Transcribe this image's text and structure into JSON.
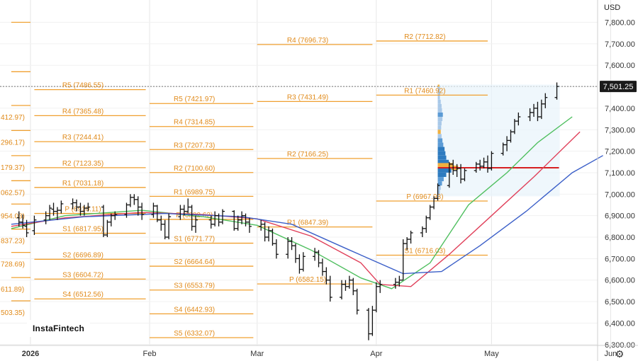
{
  "currency": "USD",
  "last_price": "7,501.25",
  "logo": "InstaFintech",
  "settings_icon": "gear-icon",
  "chart_data": {
    "type": "ohlc-with-pivot-levels",
    "y_axis_ticks": [
      "7,800.00",
      "7,700.00",
      "7,600.00",
      "7,500.00",
      "7,400.00",
      "7,300.00",
      "7,200.00",
      "7,100.00",
      "7,000.00",
      "6,900.00",
      "6,800.00",
      "6,700.00",
      "6,600.00",
      "6,500.00",
      "6,400.00",
      "6,300.00"
    ],
    "y_range": [
      6280,
      7840
    ],
    "x_axis_labels": [
      "2026",
      "Feb",
      "Mar",
      "Apr",
      "May",
      "Jun"
    ],
    "x_range": [
      "2025-12-27",
      "2026-06-01"
    ],
    "last_price": 7501.25,
    "colors": {
      "pivot": "#f0a030",
      "pivot_text": "#e08a1a",
      "bars": "#111111",
      "sma_fast": "#4fbf5f",
      "sma_mid": "#e0405a",
      "sma_slow": "#3b5fc8",
      "poc": "#d62020",
      "profile_box": "#e8f3fb",
      "grid": "#e6e6e6"
    },
    "pivot_periods": [
      {
        "start": "2025-12-27",
        "end": "2026-01-01",
        "levels": [
          {
            "label": "",
            "value": 7800
          },
          {
            "label": "",
            "value": 7570
          },
          {
            "label": "412.97)",
            "value": 7412.97
          },
          {
            "label": "296.17)",
            "value": 7296.17
          },
          {
            "label": "179.37)",
            "value": 7179.37
          },
          {
            "label": "062.57)",
            "value": 7062.57
          },
          {
            "label": "954.03)",
            "value": 6954.03
          },
          {
            "label": "837.23)",
            "value": 6837.23
          },
          {
            "label": "728.69)",
            "value": 6728.69
          },
          {
            "label": "611.89)",
            "value": 6611.89
          },
          {
            "label": "503.35)",
            "value": 6503.35
          }
        ]
      },
      {
        "start": "2026-01-02",
        "end": "2026-01-31",
        "levels": [
          {
            "label": "R5 (7486.55)",
            "value": 7486.55
          },
          {
            "label": "R4 (7365.48)",
            "value": 7365.48
          },
          {
            "label": "R3 (7244.41)",
            "value": 7244.41
          },
          {
            "label": "R2 (7123.35)",
            "value": 7123.35
          },
          {
            "label": "R1 (7031.18)",
            "value": 7031.18
          },
          {
            "label": "P (6910.11)",
            "value": 6910.11
          },
          {
            "label": "S1 (6817.95)",
            "value": 6817.95
          },
          {
            "label": "S2 (6696.89)",
            "value": 6696.89
          },
          {
            "label": "S3 (6604.72)",
            "value": 6604.72
          },
          {
            "label": "S4 (6512.56)",
            "value": 6512.56
          }
        ]
      },
      {
        "start": "2026-02-01",
        "end": "2026-02-28",
        "levels": [
          {
            "label": "R5 (7421.97)",
            "value": 7421.97
          },
          {
            "label": "R4 (7314.85)",
            "value": 7314.85
          },
          {
            "label": "R3 (7207.73)",
            "value": 7207.73
          },
          {
            "label": "R2 (7100.60)",
            "value": 7100.6
          },
          {
            "label": "R1 (6989.75)",
            "value": 6989.75
          },
          {
            "label": "P (6882.62)",
            "value": 6882.62
          },
          {
            "label": "S1 (6771.77)",
            "value": 6771.77
          },
          {
            "label": "S2 (6664.64)",
            "value": 6664.64
          },
          {
            "label": "S3 (6553.79)",
            "value": 6553.79
          },
          {
            "label": "S4 (6442.93)",
            "value": 6442.93
          },
          {
            "label": "S5 (6332.07)",
            "value": 6332.07
          }
        ]
      },
      {
        "start": "2026-03-01",
        "end": "2026-03-31",
        "levels": [
          {
            "label": "R4 (7696.73)",
            "value": 7696.73
          },
          {
            "label": "R3 (7431.49)",
            "value": 7431.49
          },
          {
            "label": "R2 (7166.25)",
            "value": 7166.25
          },
          {
            "label": "R1 (6847.39)",
            "value": 6847.39
          },
          {
            "label": "P (6582.15)",
            "value": 6582.15
          }
        ]
      },
      {
        "start": "2026-04-01",
        "end": "2026-04-30",
        "levels": [
          {
            "label": "R2 (7712.82)",
            "value": 7712.82
          },
          {
            "label": "R1 (7460.92)",
            "value": 7460.92
          },
          {
            "label": "P (6967.93)",
            "value": 6967.93
          },
          {
            "label": "S1 (6716.03)",
            "value": 6716.03
          }
        ]
      }
    ],
    "ohlc": [
      [
        "2025-12-29",
        6890,
        6920,
        6850,
        6870
      ],
      [
        "2025-12-30",
        6870,
        6905,
        6840,
        6855
      ],
      [
        "2025-12-31",
        6850,
        6880,
        6800,
        6820
      ],
      [
        "2026-01-02",
        6830,
        6900,
        6810,
        6880
      ],
      [
        "2026-01-05",
        6880,
        6920,
        6860,
        6900
      ],
      [
        "2026-01-06",
        6900,
        6950,
        6880,
        6935
      ],
      [
        "2026-01-07",
        6930,
        6960,
        6900,
        6920
      ],
      [
        "2026-01-08",
        6920,
        6940,
        6880,
        6925
      ],
      [
        "2026-01-09",
        6925,
        6970,
        6910,
        6955
      ],
      [
        "2026-01-12",
        6955,
        6980,
        6930,
        6960
      ],
      [
        "2026-01-13",
        6960,
        6975,
        6920,
        6940
      ],
      [
        "2026-01-14",
        6940,
        6960,
        6900,
        6920
      ],
      [
        "2026-01-15",
        6920,
        6950,
        6900,
        6935
      ],
      [
        "2026-01-16",
        6935,
        6960,
        6920,
        6940
      ],
      [
        "2026-01-20",
        6940,
        6950,
        6800,
        6810
      ],
      [
        "2026-01-21",
        6810,
        6880,
        6800,
        6870
      ],
      [
        "2026-01-22",
        6870,
        6910,
        6850,
        6900
      ],
      [
        "2026-01-23",
        6900,
        6920,
        6880,
        6905
      ],
      [
        "2026-01-26",
        6905,
        6960,
        6890,
        6950
      ],
      [
        "2026-01-27",
        6950,
        7000,
        6940,
        6985
      ],
      [
        "2026-01-28",
        6985,
        7000,
        6950,
        6975
      ],
      [
        "2026-01-29",
        6975,
        6990,
        6900,
        6940
      ],
      [
        "2026-01-30",
        6940,
        6960,
        6880,
        6905
      ],
      [
        "2026-02-02",
        6905,
        6960,
        6890,
        6945
      ],
      [
        "2026-02-03",
        6945,
        6950,
        6870,
        6880
      ],
      [
        "2026-02-04",
        6880,
        6900,
        6830,
        6860
      ],
      [
        "2026-02-05",
        6860,
        6880,
        6790,
        6800
      ],
      [
        "2026-02-06",
        6800,
        6910,
        6790,
        6895
      ],
      [
        "2026-02-09",
        6895,
        6950,
        6880,
        6930
      ],
      [
        "2026-02-10",
        6930,
        6950,
        6900,
        6920
      ],
      [
        "2026-02-11",
        6920,
        6980,
        6910,
        6940
      ],
      [
        "2026-02-12",
        6940,
        6950,
        6830,
        6850
      ],
      [
        "2026-02-13",
        6850,
        6900,
        6820,
        6880
      ],
      [
        "2026-02-17",
        6880,
        6900,
        6840,
        6860
      ],
      [
        "2026-02-18",
        6860,
        6920,
        6850,
        6900
      ],
      [
        "2026-02-19",
        6900,
        6910,
        6850,
        6870
      ],
      [
        "2026-02-20",
        6870,
        6930,
        6860,
        6920
      ],
      [
        "2026-02-23",
        6920,
        6925,
        6830,
        6840
      ],
      [
        "2026-02-24",
        6840,
        6900,
        6830,
        6880
      ],
      [
        "2026-02-25",
        6880,
        6920,
        6860,
        6900
      ],
      [
        "2026-02-26",
        6900,
        6910,
        6850,
        6870
      ],
      [
        "2026-02-27",
        6870,
        6890,
        6820,
        6850
      ],
      [
        "2026-03-02",
        6850,
        6880,
        6830,
        6860
      ],
      [
        "2026-03-03",
        6860,
        6870,
        6780,
        6800
      ],
      [
        "2026-03-04",
        6800,
        6850,
        6780,
        6830
      ],
      [
        "2026-03-05",
        6830,
        6840,
        6760,
        6770
      ],
      [
        "2026-03-06",
        6770,
        6790,
        6700,
        6720
      ],
      [
        "2026-03-09",
        6720,
        6800,
        6700,
        6780
      ],
      [
        "2026-03-10",
        6780,
        6800,
        6740,
        6760
      ],
      [
        "2026-03-11",
        6760,
        6770,
        6680,
        6700
      ],
      [
        "2026-03-12",
        6700,
        6720,
        6630,
        6650
      ],
      [
        "2026-03-13",
        6650,
        6730,
        6640,
        6710
      ],
      [
        "2026-03-16",
        6710,
        6750,
        6690,
        6730
      ],
      [
        "2026-03-17",
        6730,
        6740,
        6660,
        6680
      ],
      [
        "2026-03-18",
        6680,
        6700,
        6620,
        6640
      ],
      [
        "2026-03-19",
        6640,
        6660,
        6580,
        6600
      ],
      [
        "2026-03-20",
        6600,
        6620,
        6500,
        6520
      ],
      [
        "2026-03-23",
        6520,
        6600,
        6510,
        6580
      ],
      [
        "2026-03-24",
        6580,
        6600,
        6550,
        6570
      ],
      [
        "2026-03-25",
        6570,
        6620,
        6560,
        6600
      ],
      [
        "2026-03-26",
        6600,
        6610,
        6530,
        6550
      ],
      [
        "2026-03-27",
        6550,
        6560,
        6440,
        6460
      ],
      [
        "2026-03-30",
        6460,
        6470,
        6320,
        6350
      ],
      [
        "2026-03-31",
        6350,
        6480,
        6340,
        6460
      ],
      [
        "2026-04-01",
        6460,
        6590,
        6450,
        6570
      ],
      [
        "2026-04-02",
        6570,
        6600,
        6540,
        6580
      ],
      [
        "2026-04-06",
        6580,
        6610,
        6560,
        6590
      ],
      [
        "2026-04-07",
        6590,
        6620,
        6570,
        6600
      ],
      [
        "2026-04-08",
        6600,
        6790,
        6600,
        6770
      ],
      [
        "2026-04-09",
        6770,
        6800,
        6740,
        6790
      ],
      [
        "2026-04-10",
        6790,
        6830,
        6770,
        6820
      ],
      [
        "2026-04-13",
        6820,
        6850,
        6800,
        6840
      ],
      [
        "2026-04-14",
        6840,
        6900,
        6820,
        6890
      ],
      [
        "2026-04-15",
        6890,
        6950,
        6880,
        6940
      ],
      [
        "2026-04-16",
        6940,
        6990,
        6930,
        6980
      ],
      [
        "2026-04-17",
        6980,
        7050,
        6970,
        7040
      ],
      [
        "2026-04-20",
        7040,
        7150,
        7030,
        7140
      ],
      [
        "2026-04-21",
        7140,
        7160,
        7090,
        7110
      ],
      [
        "2026-04-22",
        7110,
        7140,
        7080,
        7120
      ],
      [
        "2026-04-23",
        7120,
        7140,
        7050,
        7070
      ],
      [
        "2026-04-24",
        7070,
        7120,
        7060,
        7110
      ],
      [
        "2026-04-27",
        7110,
        7150,
        7100,
        7140
      ],
      [
        "2026-04-28",
        7140,
        7160,
        7110,
        7130
      ],
      [
        "2026-04-29",
        7130,
        7170,
        7120,
        7150
      ],
      [
        "2026-04-30",
        7150,
        7180,
        7100,
        7120
      ],
      [
        "2026-05-01",
        7120,
        7200,
        7110,
        7190
      ],
      [
        "2026-05-04",
        7190,
        7240,
        7180,
        7230
      ],
      [
        "2026-05-05",
        7230,
        7270,
        7200,
        7250
      ],
      [
        "2026-05-06",
        7250,
        7300,
        7240,
        7290
      ],
      [
        "2026-05-07",
        7290,
        7350,
        7280,
        7340
      ],
      [
        "2026-05-08",
        7340,
        7380,
        7320,
        7360
      ],
      [
        "2026-05-11",
        7360,
        7400,
        7340,
        7380
      ],
      [
        "2026-05-12",
        7380,
        7420,
        7360,
        7400
      ],
      [
        "2026-05-13",
        7400,
        7430,
        7340,
        7360
      ],
      [
        "2026-05-14",
        7360,
        7440,
        7350,
        7420
      ],
      [
        "2026-05-15",
        7420,
        7470,
        7400,
        7450
      ],
      [
        "2026-05-18",
        7450,
        7520,
        7440,
        7501.25
      ]
    ],
    "moving_averages": [
      {
        "color": "sma_fast",
        "points": [
          [
            "2025-12-27",
            6840
          ],
          [
            "2026-01-10",
            6900
          ],
          [
            "2026-01-30",
            6925
          ],
          [
            "2026-02-15",
            6895
          ],
          [
            "2026-03-01",
            6855
          ],
          [
            "2026-03-15",
            6740
          ],
          [
            "2026-03-28",
            6610
          ],
          [
            "2026-04-05",
            6560
          ],
          [
            "2026-04-15",
            6680
          ],
          [
            "2026-04-25",
            6950
          ],
          [
            "2026-05-05",
            7100
          ],
          [
            "2026-05-13",
            7240
          ],
          [
            "2026-05-22",
            7360
          ]
        ]
      },
      {
        "color": "sma_mid",
        "points": [
          [
            "2025-12-27",
            6850
          ],
          [
            "2026-01-10",
            6890
          ],
          [
            "2026-01-30",
            6915
          ],
          [
            "2026-02-15",
            6905
          ],
          [
            "2026-03-01",
            6885
          ],
          [
            "2026-03-15",
            6805
          ],
          [
            "2026-03-28",
            6680
          ],
          [
            "2026-04-02",
            6580
          ],
          [
            "2026-04-10",
            6570
          ],
          [
            "2026-04-20",
            6720
          ],
          [
            "2026-05-01",
            6900
          ],
          [
            "2026-05-12",
            7080
          ],
          [
            "2026-05-24",
            7290
          ]
        ]
      },
      {
        "color": "sma_slow",
        "points": [
          [
            "2025-12-27",
            6860
          ],
          [
            "2026-01-15",
            6895
          ],
          [
            "2026-02-05",
            6910
          ],
          [
            "2026-02-25",
            6895
          ],
          [
            "2026-03-10",
            6860
          ],
          [
            "2026-03-25",
            6740
          ],
          [
            "2026-04-08",
            6630
          ],
          [
            "2026-04-18",
            6640
          ],
          [
            "2026-04-28",
            6760
          ],
          [
            "2026-05-10",
            6920
          ],
          [
            "2026-05-22",
            7100
          ],
          [
            "2026-05-30",
            7180
          ]
        ]
      }
    ],
    "volume_profile": {
      "start": "2026-04-17",
      "end": "2026-05-18",
      "top": 7510,
      "bottom": 6990,
      "poc": 7123,
      "poc_end": "2026-05-18",
      "bins": [
        [
          7500,
          0.2,
          "#f0b040"
        ],
        [
          7490,
          0.25,
          "#a8c8e8"
        ],
        [
          7470,
          0.3,
          "#a8c8e8"
        ],
        [
          7450,
          0.25,
          "#a8c8e8"
        ],
        [
          7430,
          0.35,
          "#a8c8e8"
        ],
        [
          7410,
          0.45,
          "#a8c8e8"
        ],
        [
          7390,
          0.5,
          "#a8c8e8"
        ],
        [
          7370,
          0.6,
          "#5b9bd5"
        ],
        [
          7350,
          0.55,
          "#a8c8e8"
        ],
        [
          7330,
          0.45,
          "#a8c8e8"
        ],
        [
          7310,
          0.4,
          "#a8c8e8"
        ],
        [
          7290,
          0.35,
          "#f0b040"
        ],
        [
          7270,
          0.45,
          "#a8c8e8"
        ],
        [
          7250,
          0.55,
          "#5b9bd5"
        ],
        [
          7230,
          0.65,
          "#5b9bd5"
        ],
        [
          7210,
          0.8,
          "#2e7bbf"
        ],
        [
          7190,
          0.9,
          "#2e7bbf"
        ],
        [
          7170,
          1.0,
          "#2e7bbf"
        ],
        [
          7150,
          1.3,
          "#2e7bbf"
        ],
        [
          7135,
          1.8,
          "#f0b040"
        ],
        [
          7123,
          2.4,
          "#f0b040"
        ],
        [
          7110,
          1.6,
          "#2e7bbf"
        ],
        [
          7090,
          1.0,
          "#2e7bbf"
        ],
        [
          7070,
          0.7,
          "#5b9bd5"
        ],
        [
          7050,
          0.5,
          "#5b9bd5"
        ],
        [
          7030,
          0.35,
          "#a8c8e8"
        ],
        [
          7010,
          0.25,
          "#a8c8e8"
        ]
      ]
    }
  }
}
